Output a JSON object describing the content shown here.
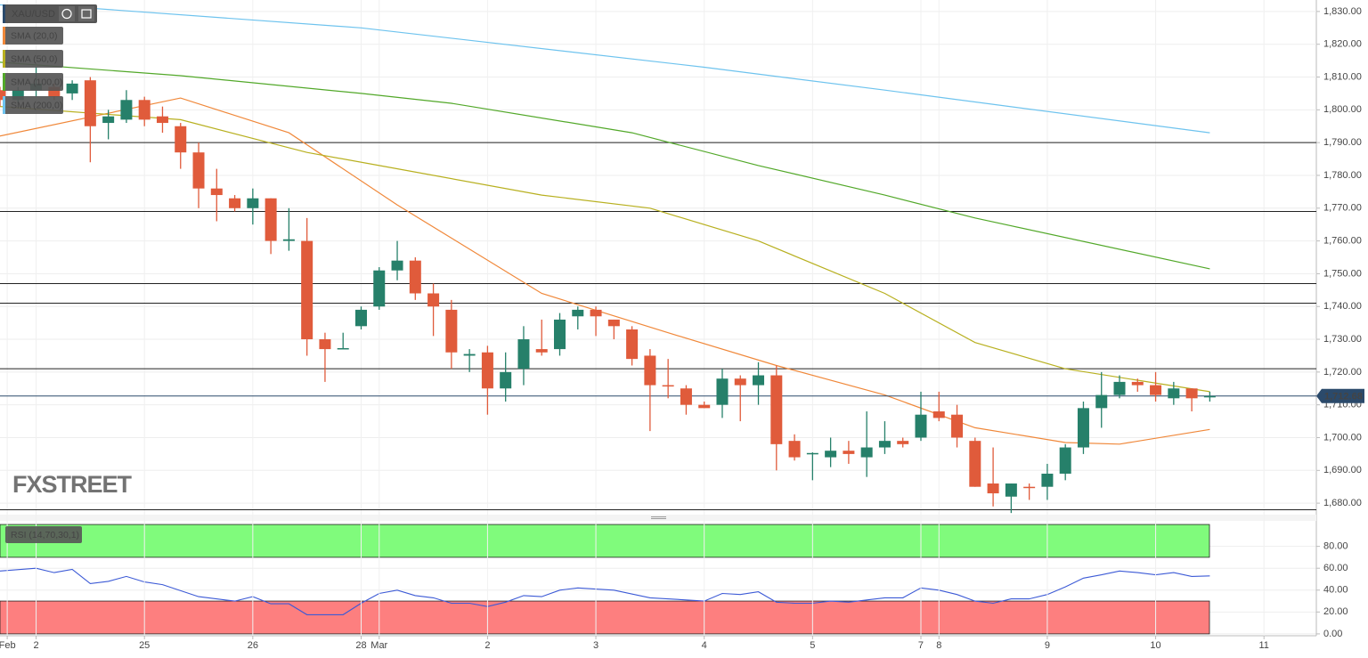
{
  "chart_data": [
    {
      "type": "candlestick",
      "symbol": "XAU/USD",
      "watermark": "FXSTREET",
      "up_color": "#26806a",
      "down_color": "#e05b3b",
      "open": [
        1806,
        1803,
        1806,
        1807,
        1805,
        1809,
        1796,
        1797,
        1803,
        1798,
        1795,
        1787,
        1776,
        1773,
        1770,
        1773,
        1760,
        1760,
        1730,
        1727,
        1734,
        1740,
        1751,
        1754,
        1744,
        1739,
        1725,
        1726,
        1715,
        1721,
        1727,
        1727,
        1737,
        1739,
        1736,
        1733,
        1725,
        1716,
        1715,
        1710,
        1710,
        1718,
        1716,
        1719,
        1699,
        1695,
        1694,
        1696,
        1694,
        1697,
        1699,
        1700,
        1708,
        1707,
        1699,
        1686,
        1682,
        1685,
        1685,
        1689,
        1697,
        1709,
        1713,
        1717,
        1716,
        1712,
        1715,
        1712.5
      ],
      "high": [
        1807,
        1807,
        1813,
        1808,
        1809,
        1810,
        1800,
        1806,
        1804,
        1801,
        1796,
        1790,
        1782,
        1774,
        1776,
        1773,
        1770,
        1767,
        1732,
        1732,
        1740,
        1752,
        1760,
        1755,
        1747,
        1742,
        1727,
        1728,
        1726,
        1734,
        1736,
        1738,
        1740,
        1740,
        1736,
        1734,
        1727,
        1724,
        1716,
        1711,
        1721,
        1719,
        1723,
        1722,
        1701,
        1695.5,
        1700,
        1699,
        1708,
        1705,
        1700,
        1714,
        1714,
        1710,
        1700,
        1697,
        1686,
        1686,
        1692,
        1698,
        1711,
        1720,
        1719,
        1718,
        1720,
        1717,
        1715,
        1714
      ],
      "low": [
        1801,
        1802,
        1804,
        1803,
        1803,
        1784,
        1791,
        1796,
        1795,
        1793,
        1782,
        1770,
        1766,
        1769,
        1765,
        1756,
        1757,
        1725,
        1717,
        1727,
        1733,
        1739,
        1748,
        1742,
        1731,
        1721,
        1720,
        1707,
        1711,
        1716,
        1725,
        1725,
        1733,
        1731,
        1730,
        1722,
        1702,
        1712,
        1707,
        1709,
        1706,
        1705,
        1710,
        1690,
        1693,
        1687,
        1691,
        1692,
        1688,
        1695,
        1697,
        1699,
        1705,
        1697,
        1685,
        1679,
        1677,
        1681,
        1681,
        1687,
        1695,
        1703,
        1712,
        1714,
        1711,
        1710,
        1708,
        1711
      ],
      "close": [
        1803,
        1806,
        1808,
        1804,
        1808,
        1795,
        1798,
        1803,
        1797,
        1796,
        1787,
        1776,
        1774,
        1770,
        1773,
        1760,
        1760.5,
        1730,
        1727,
        1727.3,
        1739,
        1751,
        1754,
        1744,
        1740,
        1726,
        1725.5,
        1715,
        1720,
        1730,
        1726,
        1736,
        1739,
        1737,
        1734,
        1724,
        1716,
        1715.6,
        1710,
        1709,
        1718,
        1716,
        1719,
        1698,
        1694,
        1695.3,
        1696,
        1695,
        1697,
        1699,
        1698,
        1707,
        1706,
        1700,
        1685,
        1683,
        1686,
        1684.8,
        1689,
        1697,
        1709,
        1713,
        1717,
        1716,
        1713,
        1715,
        1712,
        1712.68
      ],
      "overlays": [
        {
          "name": "SMA (20,0)",
          "color": "#f0883a",
          "x": [
            0,
            10,
            16,
            22,
            30,
            37,
            43,
            49,
            54,
            59,
            62,
            67
          ],
          "values": [
            1792,
            1803.6,
            1793,
            1771,
            1744,
            1732,
            1722,
            1713,
            1703,
            1698.5,
            1698,
            1702.5
          ]
        },
        {
          "name": "SMA (50,0)",
          "color": "#b8b020",
          "x": [
            0,
            10,
            17,
            21,
            30,
            36,
            42,
            49,
            54,
            59,
            67
          ],
          "values": [
            1801,
            1797,
            1787,
            1783,
            1774,
            1770,
            1760,
            1744,
            1729,
            1721,
            1714
          ]
        },
        {
          "name": "SMA (100,0)",
          "color": "#52a829",
          "x": [
            0,
            10,
            20,
            25,
            35,
            42,
            49,
            54,
            67
          ],
          "values": [
            1814.5,
            1810.4,
            1805,
            1802,
            1793,
            1783,
            1774,
            1767,
            1751.5
          ]
        },
        {
          "name": "SMA (200,0)",
          "color": "#6ec3ee",
          "x": [
            0,
            5,
            20,
            39,
            49,
            67
          ],
          "values": [
            1832,
            1831,
            1825,
            1813,
            1806,
            1793
          ]
        }
      ],
      "hlines": [
        1790,
        1769,
        1747,
        1741,
        1721,
        1678
      ],
      "last_price": {
        "value": 1712.68,
        "label": "1,712.68"
      },
      "xlim": [
        0,
        72.9
      ],
      "ylim": [
        1676.5,
        1833.5
      ],
      "xticks": [
        {
          "value": 0.4,
          "label": "Feb"
        },
        2,
        {
          "value": 8,
          "label": "25"
        },
        {
          "value": 14,
          "label": "26"
        },
        {
          "value": 20,
          "label": "28"
        },
        {
          "value": 21,
          "label": "Mar"
        },
        {
          "value": 27,
          "label": "2"
        },
        {
          "value": 33,
          "label": "3"
        },
        {
          "value": 39,
          "label": "4"
        },
        {
          "value": 45,
          "label": "5"
        },
        {
          "value": 51,
          "label": "7"
        },
        {
          "value": 52,
          "label": "8"
        },
        {
          "value": 58,
          "label": "9"
        },
        {
          "value": 64,
          "label": "10"
        },
        {
          "value": 70,
          "label": "11"
        }
      ],
      "yticks": [
        {
          "value": 1680,
          "label": "1,680.00"
        },
        {
          "value": 1690,
          "label": "1,690.00"
        },
        {
          "value": 1700,
          "label": "1,700.00"
        },
        {
          "value": 1710,
          "label": "1,710.00"
        },
        {
          "value": 1720,
          "label": "1,720.00"
        },
        {
          "value": 1730,
          "label": "1,730.00"
        },
        {
          "value": 1740,
          "label": "1,740.00"
        },
        {
          "value": 1750,
          "label": "1,750.00"
        },
        {
          "value": 1760,
          "label": "1,760.00"
        },
        {
          "value": 1770,
          "label": "1,770.00"
        },
        {
          "value": 1780,
          "label": "1,780.00"
        },
        {
          "value": 1790,
          "label": "1,790.00"
        },
        {
          "value": 1800,
          "label": "1,800.00"
        },
        {
          "value": 1810,
          "label": "1,810.00"
        },
        {
          "value": 1820,
          "label": "1,820.00"
        },
        {
          "value": 1830,
          "label": "1,830.00"
        }
      ]
    },
    {
      "type": "line",
      "label": "RSI (14,70,30,1)",
      "bands": [
        {
          "from": 70,
          "to": 100,
          "color": "#80fb7c"
        },
        {
          "from": 0,
          "to": 30,
          "color": "#fd7f7f"
        }
      ],
      "series": [
        {
          "color": "#3c5ad6",
          "x": [
            0,
            2,
            3,
            4,
            5,
            6,
            7,
            8,
            9,
            11,
            13,
            14,
            15,
            16,
            17,
            19,
            20,
            21,
            22,
            23,
            24,
            25,
            26,
            27,
            28,
            29,
            30,
            31,
            32,
            34,
            36,
            38,
            39,
            40,
            41,
            42,
            43,
            44,
            45,
            46,
            47,
            48,
            49,
            50,
            51,
            52,
            53,
            54,
            55,
            56,
            57,
            58,
            59,
            60,
            61,
            62,
            63,
            64,
            65,
            66,
            67
          ],
          "values": [
            57.5,
            60,
            56,
            59,
            46,
            48,
            52.5,
            47.5,
            45,
            34,
            30,
            34,
            27.5,
            27.5,
            17.5,
            17.5,
            28,
            37,
            40,
            35,
            33,
            28,
            28,
            25,
            29,
            35,
            34,
            40,
            42,
            40,
            33,
            31,
            30,
            37,
            36,
            38.5,
            29,
            28,
            28,
            30,
            29,
            31,
            33,
            33,
            42,
            40,
            36,
            30,
            28,
            32,
            32,
            36,
            43,
            51,
            54,
            57.5,
            56,
            54,
            56,
            52.5,
            53
          ]
        }
      ],
      "xlim": [
        0,
        72.9
      ],
      "ylim": [
        -1.7,
        103.3
      ],
      "yticks": [
        {
          "value": 0,
          "label": "0.00"
        },
        {
          "value": 20,
          "label": "20.00"
        },
        {
          "value": 40,
          "label": "40.00"
        },
        {
          "value": 60,
          "label": "60.00"
        },
        {
          "value": 80,
          "label": "80.00"
        }
      ]
    }
  ]
}
